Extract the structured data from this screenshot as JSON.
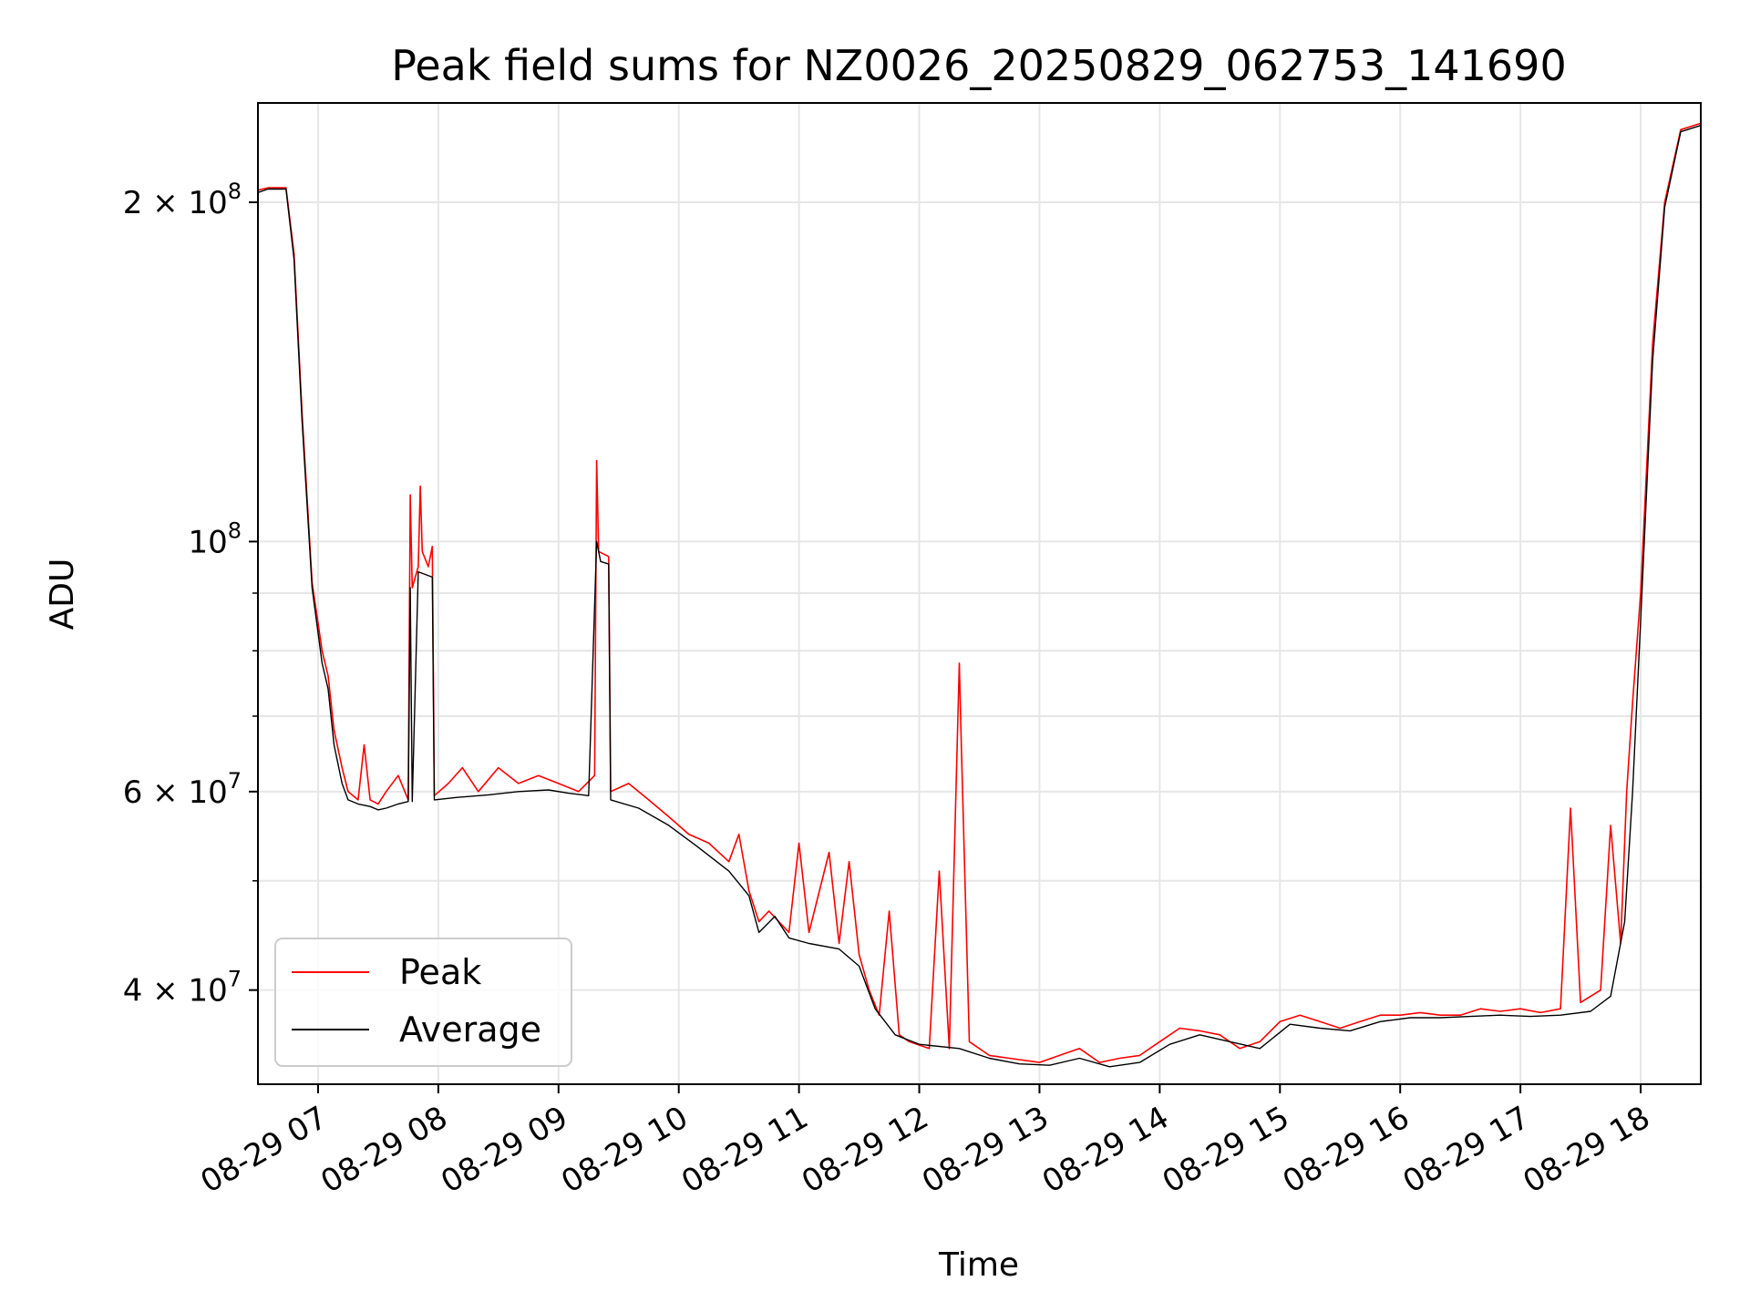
{
  "chart_data": {
    "type": "line",
    "title": "Peak field sums for NZ0026_20250829_062753_141690",
    "xlabel": "Time",
    "ylabel": "ADU",
    "y_scale": "log",
    "ylim": [
      33000000,
      245000000
    ],
    "xlim": [
      "08-29 06:30",
      "08-29 18:30"
    ],
    "grid": true,
    "legend_position": "lower-left",
    "x_ticks": [
      {
        "t": "08-29 07:00",
        "label": "08-29 07"
      },
      {
        "t": "08-29 08:00",
        "label": "08-29 08"
      },
      {
        "t": "08-29 09:00",
        "label": "08-29 09"
      },
      {
        "t": "08-29 10:00",
        "label": "08-29 10"
      },
      {
        "t": "08-29 11:00",
        "label": "08-29 11"
      },
      {
        "t": "08-29 12:00",
        "label": "08-29 12"
      },
      {
        "t": "08-29 13:00",
        "label": "08-29 13"
      },
      {
        "t": "08-29 14:00",
        "label": "08-29 14"
      },
      {
        "t": "08-29 15:00",
        "label": "08-29 15"
      },
      {
        "t": "08-29 16:00",
        "label": "08-29 16"
      },
      {
        "t": "08-29 17:00",
        "label": "08-29 17"
      },
      {
        "t": "08-29 18:00",
        "label": "08-29 18"
      }
    ],
    "y_ticks": [
      {
        "v": 40000000,
        "label": "4 × 10",
        "exp": "7"
      },
      {
        "v": 60000000,
        "label": "6 × 10",
        "exp": "7"
      },
      {
        "v": 100000000,
        "label": "10",
        "exp": "8"
      },
      {
        "v": 200000000,
        "label": "2 × 10",
        "exp": "8"
      }
    ],
    "y_minor_ticks": [
      50000000,
      70000000,
      80000000,
      90000000
    ],
    "colors": {
      "peak": "#ff0000",
      "average": "#000000",
      "grid": "#e6e6e6"
    },
    "series": [
      {
        "name": "Peak",
        "color": "#ff0000",
        "points": [
          [
            "08-29 06:30",
            205000000
          ],
          [
            "08-29 06:35",
            206000000
          ],
          [
            "08-29 06:44",
            206000000
          ],
          [
            "08-29 06:48",
            180000000
          ],
          [
            "08-29 06:52",
            130000000
          ],
          [
            "08-29 06:57",
            92000000
          ],
          [
            "08-29 07:02",
            80000000
          ],
          [
            "08-29 07:05",
            76000000
          ],
          [
            "08-29 07:08",
            68000000
          ],
          [
            "08-29 07:12",
            63000000
          ],
          [
            "08-29 07:15",
            60000000
          ],
          [
            "08-29 07:20",
            59000000
          ],
          [
            "08-29 07:23",
            66000000
          ],
          [
            "08-29 07:26",
            59000000
          ],
          [
            "08-29 07:30",
            58500000
          ],
          [
            "08-29 07:34",
            60000000
          ],
          [
            "08-29 07:40",
            62000000
          ],
          [
            "08-29 07:45",
            59000000
          ],
          [
            "08-29 07:46",
            110000000
          ],
          [
            "08-29 07:47",
            91000000
          ],
          [
            "08-29 07:50",
            95000000
          ],
          [
            "08-29 07:51",
            112000000
          ],
          [
            "08-29 07:52",
            98000000
          ],
          [
            "08-29 07:55",
            95000000
          ],
          [
            "08-29 07:57",
            99000000
          ],
          [
            "08-29 07:58",
            59500000
          ],
          [
            "08-29 08:05",
            61000000
          ],
          [
            "08-29 08:12",
            63000000
          ],
          [
            "08-29 08:20",
            60000000
          ],
          [
            "08-29 08:30",
            63000000
          ],
          [
            "08-29 08:40",
            61000000
          ],
          [
            "08-29 08:50",
            62000000
          ],
          [
            "08-29 09:00",
            61000000
          ],
          [
            "08-29 09:10",
            60000000
          ],
          [
            "08-29 09:18",
            62000000
          ],
          [
            "08-29 09:19",
            118000000
          ],
          [
            "08-29 09:20",
            98000000
          ],
          [
            "08-29 09:25",
            97000000
          ],
          [
            "08-29 09:26",
            60000000
          ],
          [
            "08-29 09:35",
            61000000
          ],
          [
            "08-29 09:45",
            59000000
          ],
          [
            "08-29 09:55",
            57000000
          ],
          [
            "08-29 10:05",
            55000000
          ],
          [
            "08-29 10:15",
            54000000
          ],
          [
            "08-29 10:25",
            52000000
          ],
          [
            "08-29 10:30",
            55000000
          ],
          [
            "08-29 10:35",
            49000000
          ],
          [
            "08-29 10:40",
            46000000
          ],
          [
            "08-29 10:45",
            47000000
          ],
          [
            "08-29 10:55",
            45000000
          ],
          [
            "08-29 11:00",
            54000000
          ],
          [
            "08-29 11:05",
            45000000
          ],
          [
            "08-29 11:15",
            53000000
          ],
          [
            "08-29 11:20",
            44000000
          ],
          [
            "08-29 11:25",
            52000000
          ],
          [
            "08-29 11:30",
            43000000
          ],
          [
            "08-29 11:35",
            40000000
          ],
          [
            "08-29 11:40",
            38000000
          ],
          [
            "08-29 11:45",
            47000000
          ],
          [
            "08-29 11:50",
            36500000
          ],
          [
            "08-29 11:55",
            36000000
          ],
          [
            "08-29 12:05",
            35500000
          ],
          [
            "08-29 12:10",
            51000000
          ],
          [
            "08-29 12:15",
            35500000
          ],
          [
            "08-29 12:20",
            78000000
          ],
          [
            "08-29 12:21",
            66000000
          ],
          [
            "08-29 12:25",
            36000000
          ],
          [
            "08-29 12:35",
            35000000
          ],
          [
            "08-29 12:45",
            34800000
          ],
          [
            "08-29 13:00",
            34500000
          ],
          [
            "08-29 13:10",
            35000000
          ],
          [
            "08-29 13:20",
            35500000
          ],
          [
            "08-29 13:30",
            34500000
          ],
          [
            "08-29 13:40",
            34800000
          ],
          [
            "08-29 13:50",
            35000000
          ],
          [
            "08-29 14:00",
            36000000
          ],
          [
            "08-29 14:10",
            37000000
          ],
          [
            "08-29 14:20",
            36800000
          ],
          [
            "08-29 14:30",
            36500000
          ],
          [
            "08-29 14:40",
            35500000
          ],
          [
            "08-29 14:50",
            36000000
          ],
          [
            "08-29 15:00",
            37500000
          ],
          [
            "08-29 15:10",
            38000000
          ],
          [
            "08-29 15:20",
            37500000
          ],
          [
            "08-29 15:30",
            37000000
          ],
          [
            "08-29 15:40",
            37500000
          ],
          [
            "08-29 15:50",
            38000000
          ],
          [
            "08-29 16:00",
            38000000
          ],
          [
            "08-29 16:10",
            38200000
          ],
          [
            "08-29 16:20",
            38000000
          ],
          [
            "08-29 16:30",
            38000000
          ],
          [
            "08-29 16:40",
            38500000
          ],
          [
            "08-29 16:50",
            38300000
          ],
          [
            "08-29 17:00",
            38500000
          ],
          [
            "08-29 17:10",
            38200000
          ],
          [
            "08-29 17:20",
            38500000
          ],
          [
            "08-29 17:25",
            58000000
          ],
          [
            "08-29 17:30",
            39000000
          ],
          [
            "08-29 17:40",
            40000000
          ],
          [
            "08-29 17:45",
            56000000
          ],
          [
            "08-29 17:50",
            44000000
          ],
          [
            "08-29 17:53",
            60000000
          ],
          [
            "08-29 17:56",
            72000000
          ],
          [
            "08-29 18:00",
            90000000
          ],
          [
            "08-29 18:06",
            150000000
          ],
          [
            "08-29 18:12",
            200000000
          ],
          [
            "08-29 18:20",
            232000000
          ],
          [
            "08-29 18:30",
            235000000
          ]
        ]
      },
      {
        "name": "Average",
        "color": "#000000",
        "points": [
          [
            "08-29 06:30",
            204000000
          ],
          [
            "08-29 06:35",
            205500000
          ],
          [
            "08-29 06:44",
            205500000
          ],
          [
            "08-29 06:48",
            178000000
          ],
          [
            "08-29 06:52",
            128000000
          ],
          [
            "08-29 06:57",
            91000000
          ],
          [
            "08-29 07:02",
            78000000
          ],
          [
            "08-29 07:05",
            74000000
          ],
          [
            "08-29 07:08",
            66000000
          ],
          [
            "08-29 07:12",
            61000000
          ],
          [
            "08-29 07:15",
            59000000
          ],
          [
            "08-29 07:20",
            58500000
          ],
          [
            "08-29 07:26",
            58200000
          ],
          [
            "08-29 07:30",
            57800000
          ],
          [
            "08-29 07:34",
            58000000
          ],
          [
            "08-29 07:40",
            58500000
          ],
          [
            "08-29 07:45",
            58800000
          ],
          [
            "08-29 07:46",
            91000000
          ],
          [
            "08-29 07:47",
            58800000
          ],
          [
            "08-29 07:50",
            94000000
          ],
          [
            "08-29 07:57",
            93000000
          ],
          [
            "08-29 07:58",
            59000000
          ],
          [
            "08-29 08:10",
            59300000
          ],
          [
            "08-29 08:25",
            59600000
          ],
          [
            "08-29 08:40",
            60000000
          ],
          [
            "08-29 08:55",
            60200000
          ],
          [
            "08-29 09:05",
            59800000
          ],
          [
            "08-29 09:15",
            59500000
          ],
          [
            "08-29 09:19",
            100000000
          ],
          [
            "08-29 09:21",
            96000000
          ],
          [
            "08-29 09:25",
            95500000
          ],
          [
            "08-29 09:26",
            59000000
          ],
          [
            "08-29 09:40",
            58000000
          ],
          [
            "08-29 09:55",
            56000000
          ],
          [
            "08-29 10:10",
            53500000
          ],
          [
            "08-29 10:25",
            51000000
          ],
          [
            "08-29 10:35",
            48500000
          ],
          [
            "08-29 10:40",
            45000000
          ],
          [
            "08-29 10:48",
            46500000
          ],
          [
            "08-29 10:55",
            44500000
          ],
          [
            "08-29 11:05",
            44000000
          ],
          [
            "08-29 11:20",
            43500000
          ],
          [
            "08-29 11:30",
            42000000
          ],
          [
            "08-29 11:38",
            38500000
          ],
          [
            "08-29 11:48",
            36500000
          ],
          [
            "08-29 12:00",
            35800000
          ],
          [
            "08-29 12:20",
            35500000
          ],
          [
            "08-29 12:35",
            34800000
          ],
          [
            "08-29 12:50",
            34400000
          ],
          [
            "08-29 13:05",
            34300000
          ],
          [
            "08-29 13:20",
            34800000
          ],
          [
            "08-29 13:35",
            34200000
          ],
          [
            "08-29 13:50",
            34500000
          ],
          [
            "08-29 14:05",
            35800000
          ],
          [
            "08-29 14:20",
            36500000
          ],
          [
            "08-29 14:35",
            36000000
          ],
          [
            "08-29 14:50",
            35500000
          ],
          [
            "08-29 15:05",
            37300000
          ],
          [
            "08-29 15:20",
            37000000
          ],
          [
            "08-29 15:35",
            36800000
          ],
          [
            "08-29 15:50",
            37500000
          ],
          [
            "08-29 16:05",
            37800000
          ],
          [
            "08-29 16:20",
            37800000
          ],
          [
            "08-29 16:35",
            37900000
          ],
          [
            "08-29 16:50",
            38000000
          ],
          [
            "08-29 17:05",
            37900000
          ],
          [
            "08-29 17:20",
            38000000
          ],
          [
            "08-29 17:35",
            38300000
          ],
          [
            "08-29 17:45",
            39500000
          ],
          [
            "08-29 17:52",
            46000000
          ],
          [
            "08-29 17:56",
            60000000
          ],
          [
            "08-29 18:00",
            85000000
          ],
          [
            "08-29 18:06",
            145000000
          ],
          [
            "08-29 18:12",
            198000000
          ],
          [
            "08-29 18:20",
            231000000
          ],
          [
            "08-29 18:30",
            234000000
          ]
        ]
      }
    ]
  }
}
